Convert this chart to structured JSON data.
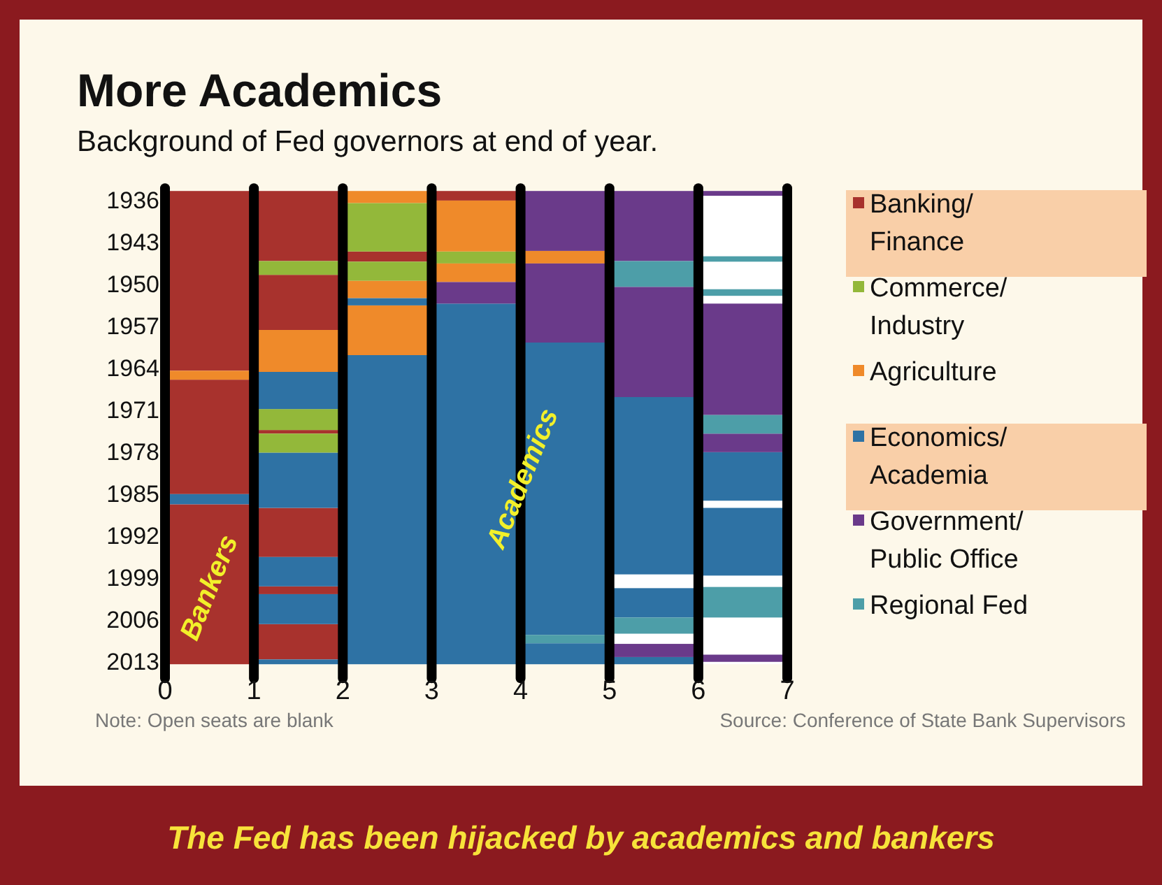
{
  "chart_data": {
    "type": "bar",
    "title": "More Academics",
    "subtitle": "Background of Fed governors at end of year.",
    "xlim": [
      0,
      7
    ],
    "xticks": [
      0,
      1,
      2,
      3,
      4,
      5,
      6,
      7
    ],
    "ylim": [
      2013.5,
      1934.5
    ],
    "yticks": [
      1936,
      1943,
      1950,
      1957,
      1964,
      1971,
      1978,
      1985,
      1992,
      1999,
      2006,
      2013
    ],
    "grid": "x",
    "legend": "right",
    "series": [
      {
        "name": "Banking/Finance",
        "color": "#a8322d",
        "x": [
          0.5,
          1.5,
          2.5,
          3.5
        ],
        "base": [
          1934.5,
          1934.5,
          1944.6,
          1934.5
        ],
        "values": [
          30.0,
          11.7,
          1.7,
          1.6
        ]
      },
      {
        "color": "#a8322d",
        "x": [
          0.5,
          1.5
        ],
        "base": [
          1966.0,
          1948.5
        ],
        "values": [
          19.1,
          9.2
        ]
      },
      {
        "color": "#a8322d",
        "x": [
          0.5,
          1.5
        ],
        "base": [
          1986.8,
          1974.4
        ],
        "values": [
          26.7,
          0.6
        ]
      },
      {
        "color": "#a8322d",
        "x": [
          1.5
        ],
        "base": [
          1987.4
        ],
        "values": [
          8.2
        ]
      },
      {
        "color": "#a8322d",
        "x": [
          1.5
        ],
        "base": [
          2000.5
        ],
        "values": [
          1.3
        ]
      },
      {
        "color": "#a8322d",
        "x": [
          1.5
        ],
        "base": [
          2006.8
        ],
        "values": [
          5.9
        ]
      },
      {
        "name": "Commerce/Industry",
        "color": "#93b83a",
        "x": [
          1.5,
          2.5,
          3.5
        ],
        "base": [
          1946.2,
          1936.5,
          1944.6
        ],
        "values": [
          2.3,
          8.1,
          2.0
        ]
      },
      {
        "color": "#93b83a",
        "x": [
          1.5,
          2.5
        ],
        "base": [
          1970.9,
          1946.3
        ],
        "values": [
          3.5,
          3.2
        ]
      },
      {
        "color": "#93b83a",
        "x": [
          1.5
        ],
        "base": [
          1975.0
        ],
        "values": [
          3.2
        ]
      },
      {
        "name": "Agriculture",
        "color": "#ef8a2a",
        "x": [
          0.5,
          1.5,
          2.5,
          3.5,
          4.5
        ],
        "base": [
          1964.5,
          1957.7,
          1934.5,
          1936.1,
          1944.5
        ],
        "values": [
          1.5,
          7.0,
          2.0,
          8.5,
          2.1
        ]
      },
      {
        "color": "#ef8a2a",
        "x": [
          2.5,
          3.5
        ],
        "base": [
          1949.5,
          1946.6
        ],
        "values": [
          2.9,
          3.1
        ]
      },
      {
        "color": "#ef8a2a",
        "x": [
          2.5
        ],
        "base": [
          1953.6
        ],
        "values": [
          8.3
        ]
      },
      {
        "name": "Economics/Academia",
        "color": "#2e72a4",
        "x": [
          0.5,
          1.5,
          2.5,
          3.5,
          4.5,
          5.5,
          6.5
        ],
        "base": [
          1985.1,
          1964.7,
          1952.4,
          1953.3,
          1959.8,
          1968.9,
          1978.1
        ],
        "values": [
          1.7,
          6.2,
          1.2,
          60.2,
          48.8,
          29.6,
          8.1
        ]
      },
      {
        "color": "#2e72a4",
        "x": [
          1.5,
          2.5,
          4.5,
          5.5,
          6.5
        ],
        "base": [
          1978.2,
          1961.9,
          2010.0,
          2000.8,
          1987.4
        ],
        "values": [
          9.2,
          51.6,
          3.5,
          4.9,
          11.3
        ]
      },
      {
        "color": "#2e72a4",
        "x": [
          1.5,
          5.5
        ],
        "base": [
          1995.6,
          2012.3
        ],
        "values": [
          4.9,
          1.2
        ]
      },
      {
        "color": "#2e72a4",
        "x": [
          1.5
        ],
        "base": [
          2001.8
        ],
        "values": [
          5.0
        ]
      },
      {
        "color": "#2e72a4",
        "x": [
          1.5
        ],
        "base": [
          2012.7
        ],
        "values": [
          0.8
        ]
      },
      {
        "name": "Government/Public Office",
        "color": "#6a3a8a",
        "x": [
          3.5,
          4.5,
          5.5,
          6.5
        ],
        "base": [
          1949.7,
          1934.5,
          1934.5,
          1934.5
        ],
        "values": [
          3.6,
          10.0,
          11.7,
          0.8
        ]
      },
      {
        "color": "#6a3a8a",
        "x": [
          4.5,
          5.5,
          6.5
        ],
        "base": [
          1946.6,
          1950.5,
          1953.3
        ],
        "values": [
          13.2,
          18.4,
          18.6
        ]
      },
      {
        "color": "#6a3a8a",
        "x": [
          5.5,
          6.5
        ],
        "base": [
          2010.1,
          1975.0
        ],
        "values": [
          2.2,
          3.1
        ]
      },
      {
        "color": "#6a3a8a",
        "x": [
          6.5
        ],
        "base": [
          2011.9
        ],
        "values": [
          1.2
        ]
      },
      {
        "name": "Regional Fed",
        "color": "#4d9ea8",
        "x": [
          4.5,
          5.5,
          6.5
        ],
        "base": [
          2008.6,
          1946.2,
          1945.4
        ],
        "values": [
          1.4,
          4.3,
          0.9
        ]
      },
      {
        "color": "#4d9ea8",
        "x": [
          5.5,
          6.5
        ],
        "base": [
          2005.7,
          1950.9
        ],
        "values": [
          2.7,
          1.1
        ]
      },
      {
        "color": "#4d9ea8",
        "x": [
          6.5
        ],
        "base": [
          1971.9
        ],
        "values": [
          3.1
        ]
      },
      {
        "color": "#4d9ea8",
        "x": [
          6.5
        ],
        "base": [
          2000.6
        ],
        "values": [
          5.1
        ]
      }
    ],
    "annotations": [
      "Bankers",
      "Academics",
      "Note: Open seats are blank",
      "Source: Conference of State Bank Supervisors",
      "The Fed has been hijacked by academics and bankers"
    ]
  }
}
